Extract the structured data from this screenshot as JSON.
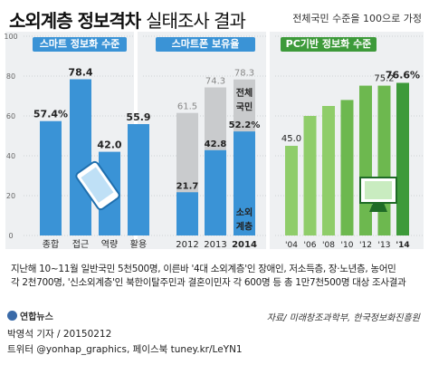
{
  "title": {
    "main": "소외계층 정보격차",
    "sub": "실태조사 결과"
  },
  "note_top": "전체국민 수준을 100으로 가정",
  "y_ticks": [
    "100",
    "80",
    "60",
    "40",
    "20",
    "0"
  ],
  "colors": {
    "blue": "#3a93d6",
    "blue_dark": "#2a7fc4",
    "gray": "#c9cbcd",
    "green_light": "#8fcd6a",
    "green_dark": "#3d9a3a",
    "green_header": "#3d9a3a",
    "panel_bg": "#eef0f2"
  },
  "chart_data": [
    {
      "type": "bar",
      "header": "스마트 정보화 수준",
      "categories": [
        "종합",
        "접근",
        "역량",
        "활용"
      ],
      "values": [
        57.4,
        78.4,
        42.0,
        55.9
      ],
      "value_labels": [
        "57.4%",
        "78.4",
        "42.0",
        "55.9"
      ],
      "ylim": [
        0,
        100
      ]
    },
    {
      "type": "bar",
      "header": "스마트폰 보유율",
      "categories": [
        "2012",
        "2013",
        "2014"
      ],
      "series": [
        {
          "name": "전체 국민",
          "values": [
            61.5,
            74.3,
            78.3
          ],
          "value_labels": [
            "61.5",
            "74.3",
            "78.3"
          ]
        },
        {
          "name": "소외 계층",
          "values": [
            21.7,
            42.8,
            52.2
          ],
          "value_labels": [
            "21.7",
            "42.8",
            "52.2%"
          ]
        }
      ],
      "ylim": [
        0,
        100
      ]
    },
    {
      "type": "bar",
      "header": "PC기반 정보화 수준",
      "categories": [
        "'04",
        "'06",
        "'08",
        "'10",
        "'12",
        "'13",
        "'14"
      ],
      "values": [
        45.0,
        60.0,
        65.0,
        68.0,
        75.2,
        75.2,
        76.6
      ],
      "labeled": [
        {
          "index": 0,
          "label": "45.0"
        },
        {
          "index": 5,
          "label": "75.2"
        },
        {
          "index": 6,
          "label": "76.6%"
        }
      ],
      "ylim": [
        0,
        100
      ]
    }
  ],
  "footnote": {
    "line1": "지난해 10~11월 일반국민 5천500명, 이른바 '4대 소외계층'인 장애인, 저소득층, 장·노년층, 농어민",
    "line2": "각 2천700명, '신소외계층'인 북한이탈주민과 결혼이민자 각 600명 등 총 1만7천500명 대상 조사결과"
  },
  "logo": "연합뉴스",
  "source": "자료/ 미래창조과학부, 한국정보화진흥원",
  "reporter": "박영석 기자 / 20150212",
  "social": "트위터 @yonhap_graphics, 페이스북 tuney.kr/LeYN1"
}
